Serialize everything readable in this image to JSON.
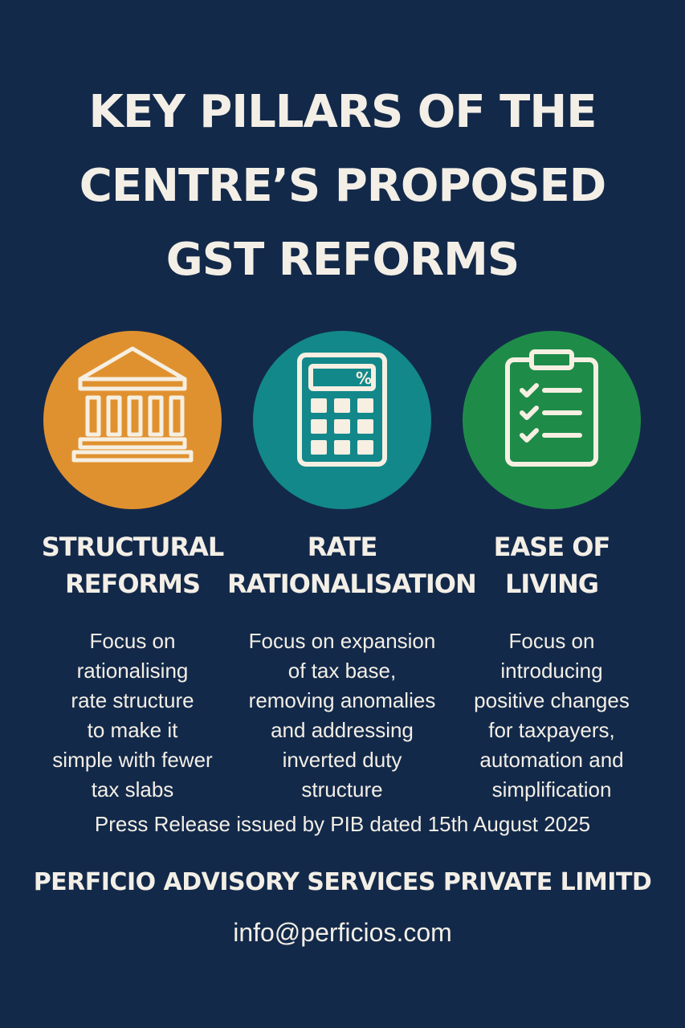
{
  "title": {
    "line1": "KEY PILLARS OF THE",
    "line2": "CENTRE’S PROPOSED",
    "line3": "GST REFORMS"
  },
  "colors": {
    "background": "#13294a",
    "text": "#f3efe6",
    "orange": "#e0912f",
    "teal": "#12888a",
    "green": "#1e8c48"
  },
  "pillars": [
    {
      "icon": "government-building-icon",
      "heading": [
        "STRUCTURAL",
        "REFORMS"
      ],
      "description": [
        "Focus on",
        "rationalising",
        "rate structure",
        "to make it",
        "simple with fewer",
        "tax slabs"
      ]
    },
    {
      "icon": "calculator-percent-icon",
      "heading": [
        "RATE",
        "RATIONALISATION"
      ],
      "description": [
        "Focus on expansion",
        "of tax base,",
        "removing anomalies",
        "and addressing",
        "inverted duty",
        "structure"
      ]
    },
    {
      "icon": "clipboard-checklist-icon",
      "heading": [
        "EASE OF",
        "LIVING"
      ],
      "description": [
        "Focus on",
        "introducing",
        "positive changes",
        "for taxpayers,",
        "automation and",
        "simplification"
      ]
    }
  ],
  "press_release": "Press Release issued by PIB dated 15th August 2025",
  "company": "PERFICIO ADVISORY SERVICES PRIVATE LIMITD",
  "email": "info@perficios.com"
}
